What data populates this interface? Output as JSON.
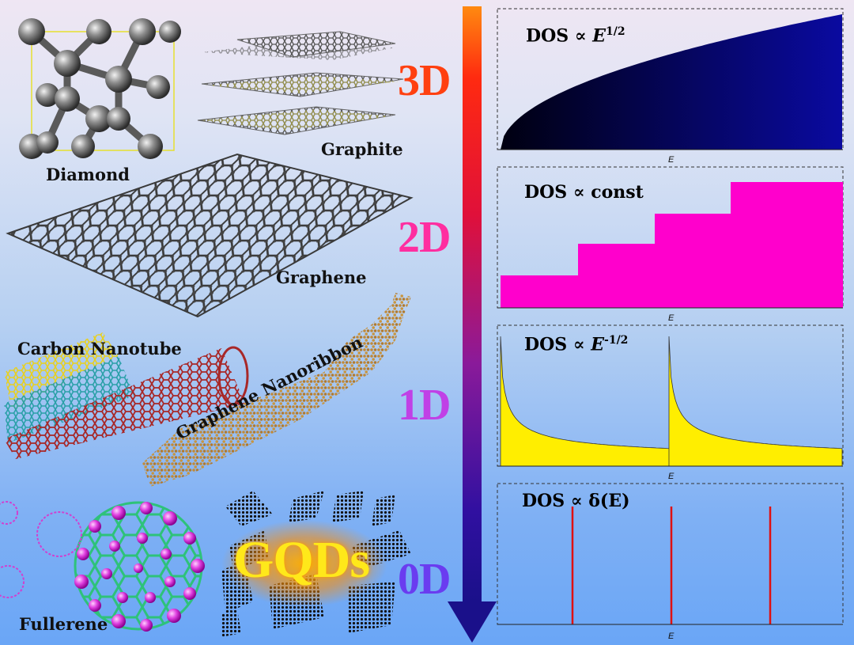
{
  "labels": {
    "diamond": "Diamond",
    "graphite": "Graphite",
    "graphene": "Graphene",
    "nanotube": "Carbon Nanotube",
    "nanoribbon": "Graphene Nanoribbon",
    "fullerene": "Fullerene",
    "gqds": "GQDs"
  },
  "dimensions": [
    "3D",
    "2D",
    "1D",
    "0D"
  ],
  "dimension_colors": [
    "#ff4010",
    "#ff2ea0",
    "#c040e6",
    "#6a3cf0"
  ],
  "panels": [
    {
      "dos_prefix": "DOS ∝ ",
      "dos_expr": "E",
      "dos_sup": "1/2",
      "axis": "E",
      "fill": "#0a0a8a"
    },
    {
      "dos_prefix": "DOS ∝ ",
      "dos_expr": "const",
      "dos_sup": "",
      "axis": "E",
      "fill": "#ff00cc"
    },
    {
      "dos_prefix": "DOS ∝ ",
      "dos_expr": "E",
      "dos_sup": "-1/2",
      "axis": "E",
      "fill": "#ffee00"
    },
    {
      "dos_prefix": "DOS ∝ ",
      "dos_expr": "δ(E)",
      "dos_sup": "",
      "axis": "E",
      "fill": "#ff0000"
    }
  ]
}
